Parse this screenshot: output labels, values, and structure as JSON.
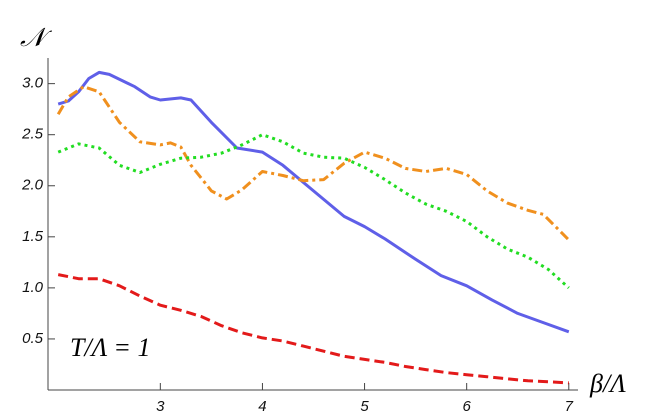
{
  "chart_data": {
    "type": "line",
    "y_label": "𝒩",
    "x_label": "β/Λ",
    "annotation": "T/Λ = 1",
    "xlim": [
      1.9,
      7.1
    ],
    "ylim": [
      0,
      3.3
    ],
    "xticks": [
      3,
      4,
      5,
      6,
      7
    ],
    "yticks": [
      0.5,
      {
        "value": 1,
        "label": "1.0"
      },
      1.5,
      {
        "value": 2,
        "label": "2.0"
      },
      2.5,
      {
        "value": 3,
        "label": "3.0"
      }
    ],
    "grid": false,
    "series": [
      {
        "color": "#5f5fe8",
        "dash": "solid",
        "x": [
          2,
          2.1,
          2.2,
          2.3,
          2.4,
          2.5,
          2.75,
          2.9,
          3.0,
          3.2,
          3.3,
          3.5,
          3.75,
          4.0,
          4.2,
          4.5,
          4.8,
          5.0,
          5.2,
          5.5,
          5.75,
          6.0,
          6.25,
          6.5,
          6.75,
          7.0
        ],
        "values": [
          2.8,
          2.83,
          2.92,
          3.05,
          3.11,
          3.09,
          2.97,
          2.87,
          2.84,
          2.86,
          2.84,
          2.62,
          2.37,
          2.33,
          2.2,
          1.95,
          1.7,
          1.6,
          1.48,
          1.28,
          1.12,
          1.02,
          0.88,
          0.75,
          0.66,
          0.57
        ]
      },
      {
        "color": "#f0901e",
        "dash": "dashdot",
        "x": [
          2,
          2.1,
          2.25,
          2.4,
          2.6,
          2.8,
          3.0,
          3.1,
          3.2,
          3.3,
          3.5,
          3.65,
          3.8,
          4.0,
          4.2,
          4.4,
          4.6,
          4.8,
          5.0,
          5.2,
          5.4,
          5.6,
          5.8,
          6.0,
          6.2,
          6.4,
          6.6,
          6.75,
          7.0
        ],
        "values": [
          2.7,
          2.87,
          2.97,
          2.92,
          2.62,
          2.43,
          2.4,
          2.42,
          2.38,
          2.2,
          1.95,
          1.87,
          1.96,
          2.14,
          2.1,
          2.05,
          2.06,
          2.22,
          2.33,
          2.27,
          2.17,
          2.14,
          2.17,
          2.11,
          1.95,
          1.83,
          1.76,
          1.72,
          1.47
        ]
      },
      {
        "color": "#22dd22",
        "dash": "dotted",
        "x": [
          2,
          2.2,
          2.4,
          2.6,
          2.8,
          3.0,
          3.2,
          3.4,
          3.6,
          3.8,
          4.0,
          4.2,
          4.4,
          4.6,
          4.8,
          5.0,
          5.2,
          5.4,
          5.6,
          5.8,
          6.0,
          6.2,
          6.4,
          6.6,
          6.8,
          7.0
        ],
        "values": [
          2.33,
          2.41,
          2.37,
          2.2,
          2.13,
          2.21,
          2.27,
          2.28,
          2.32,
          2.4,
          2.5,
          2.43,
          2.32,
          2.28,
          2.27,
          2.18,
          2.06,
          1.93,
          1.82,
          1.75,
          1.65,
          1.5,
          1.38,
          1.3,
          1.18,
          1.0
        ]
      },
      {
        "color": "#e31a1a",
        "dash": "dashed",
        "x": [
          2,
          2.2,
          2.4,
          2.6,
          2.8,
          3.0,
          3.2,
          3.4,
          3.6,
          3.8,
          4.0,
          4.2,
          4.4,
          4.6,
          4.8,
          5.0,
          5.2,
          5.4,
          5.6,
          5.8,
          6.0,
          6.2,
          6.4,
          6.6,
          6.8,
          7.0
        ],
        "values": [
          1.13,
          1.09,
          1.09,
          1.02,
          0.92,
          0.83,
          0.78,
          0.72,
          0.63,
          0.56,
          0.51,
          0.48,
          0.43,
          0.38,
          0.33,
          0.3,
          0.27,
          0.23,
          0.2,
          0.17,
          0.15,
          0.13,
          0.11,
          0.09,
          0.08,
          0.07
        ]
      }
    ]
  }
}
